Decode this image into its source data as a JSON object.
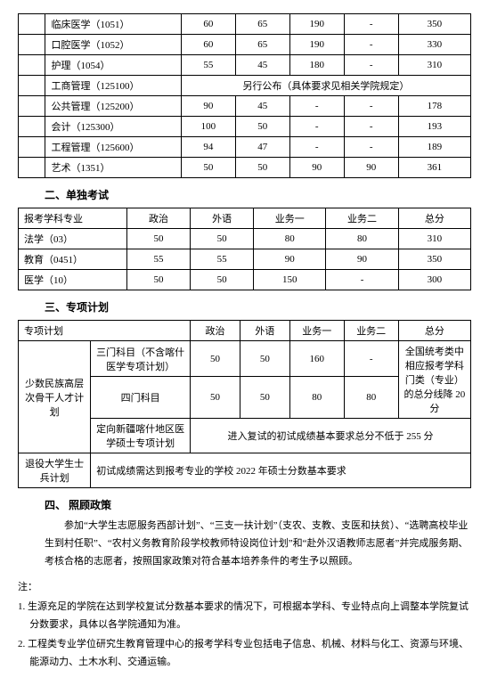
{
  "table1": {
    "rows": [
      {
        "major": "临床医学（1051）",
        "c1": "60",
        "c2": "65",
        "c3": "190",
        "c4": "-",
        "total": "350"
      },
      {
        "major": "口腔医学（1052）",
        "c1": "60",
        "c2": "65",
        "c3": "190",
        "c4": "-",
        "total": "330"
      },
      {
        "major": "护理（1054）",
        "c1": "55",
        "c2": "45",
        "c3": "180",
        "c4": "-",
        "total": "310"
      },
      {
        "major": "工商管理（125100）",
        "merged": "另行公布（具体要求见相关学院规定）"
      },
      {
        "major": "公共管理（125200）",
        "c1": "90",
        "c2": "45",
        "c3": "-",
        "c4": "-",
        "total": "178"
      },
      {
        "major": "会计（125300）",
        "c1": "100",
        "c2": "50",
        "c3": "-",
        "c4": "-",
        "total": "193"
      },
      {
        "major": "工程管理（125600）",
        "c1": "94",
        "c2": "47",
        "c3": "-",
        "c4": "-",
        "total": "189"
      },
      {
        "major": "艺术（1351）",
        "c1": "50",
        "c2": "50",
        "c3": "90",
        "c4": "90",
        "total": "361"
      }
    ]
  },
  "section2": {
    "title": "二、单独考试"
  },
  "table2": {
    "headers": [
      "报考学科专业",
      "政治",
      "外语",
      "业务一",
      "业务二",
      "总分"
    ],
    "rows": [
      {
        "major": "法学（03）",
        "c1": "50",
        "c2": "50",
        "c3": "80",
        "c4": "80",
        "total": "310"
      },
      {
        "major": "教育（0451）",
        "c1": "55",
        "c2": "55",
        "c3": "90",
        "c4": "90",
        "total": "350"
      },
      {
        "major": "医学（10）",
        "c1": "50",
        "c2": "50",
        "c3": "150",
        "c4": "-",
        "total": "300"
      }
    ]
  },
  "section3": {
    "title": "三、专项计划"
  },
  "table3": {
    "headers": [
      "专项计划",
      "",
      "政治",
      "外语",
      "业务一",
      "业务二",
      "总分"
    ],
    "plan_label": "少数民族高层次骨干人才计划",
    "row1": {
      "sub": "三门科目（不含喀什医学专项计划）",
      "c1": "50",
      "c2": "50",
      "c3": "160",
      "c4": "-"
    },
    "row2": {
      "sub": "四门科目",
      "c1": "50",
      "c2": "50",
      "c3": "80",
      "c4": "80"
    },
    "total_note": "全国统考类中相应报考学科门类（专业）的总分线降 20 分",
    "row3": {
      "sub": "定向新疆喀什地区医学硕士专项计划",
      "merged": "进入复试的初试成绩基本要求总分不低于 255 分"
    },
    "row4": {
      "plan": "退役大学生士兵计划",
      "merged": "初试成绩需达到报考专业的学校 2022 年硕士分数基本要求"
    }
  },
  "section4": {
    "title": "四、 照顾政策"
  },
  "policy": "参加“大学生志愿服务西部计划”、“三支一扶计划”（支农、支教、支医和扶贫）、“选聘高校毕业生到村任职”、“农村义务教育阶段学校教师特设岗位计划”和“赴外汉语教师志愿者”并完成服务期、考核合格的志愿者，按照国家政策对符合基本培养条件的考生予以照顾。",
  "notes": {
    "label": "注：",
    "items": [
      "1. 生源充足的学院在达到学校复试分数基本要求的情况下，可根据本学科、专业特点向上调整本学院复试分数要求，具体以各学院通知为准。",
      "2. 工程类专业学位研究生教育管理中心的报考学科专业包括电子信息、机械、材料与化工、资源与环境、能源动力、土木水利、交通运输。"
    ]
  }
}
